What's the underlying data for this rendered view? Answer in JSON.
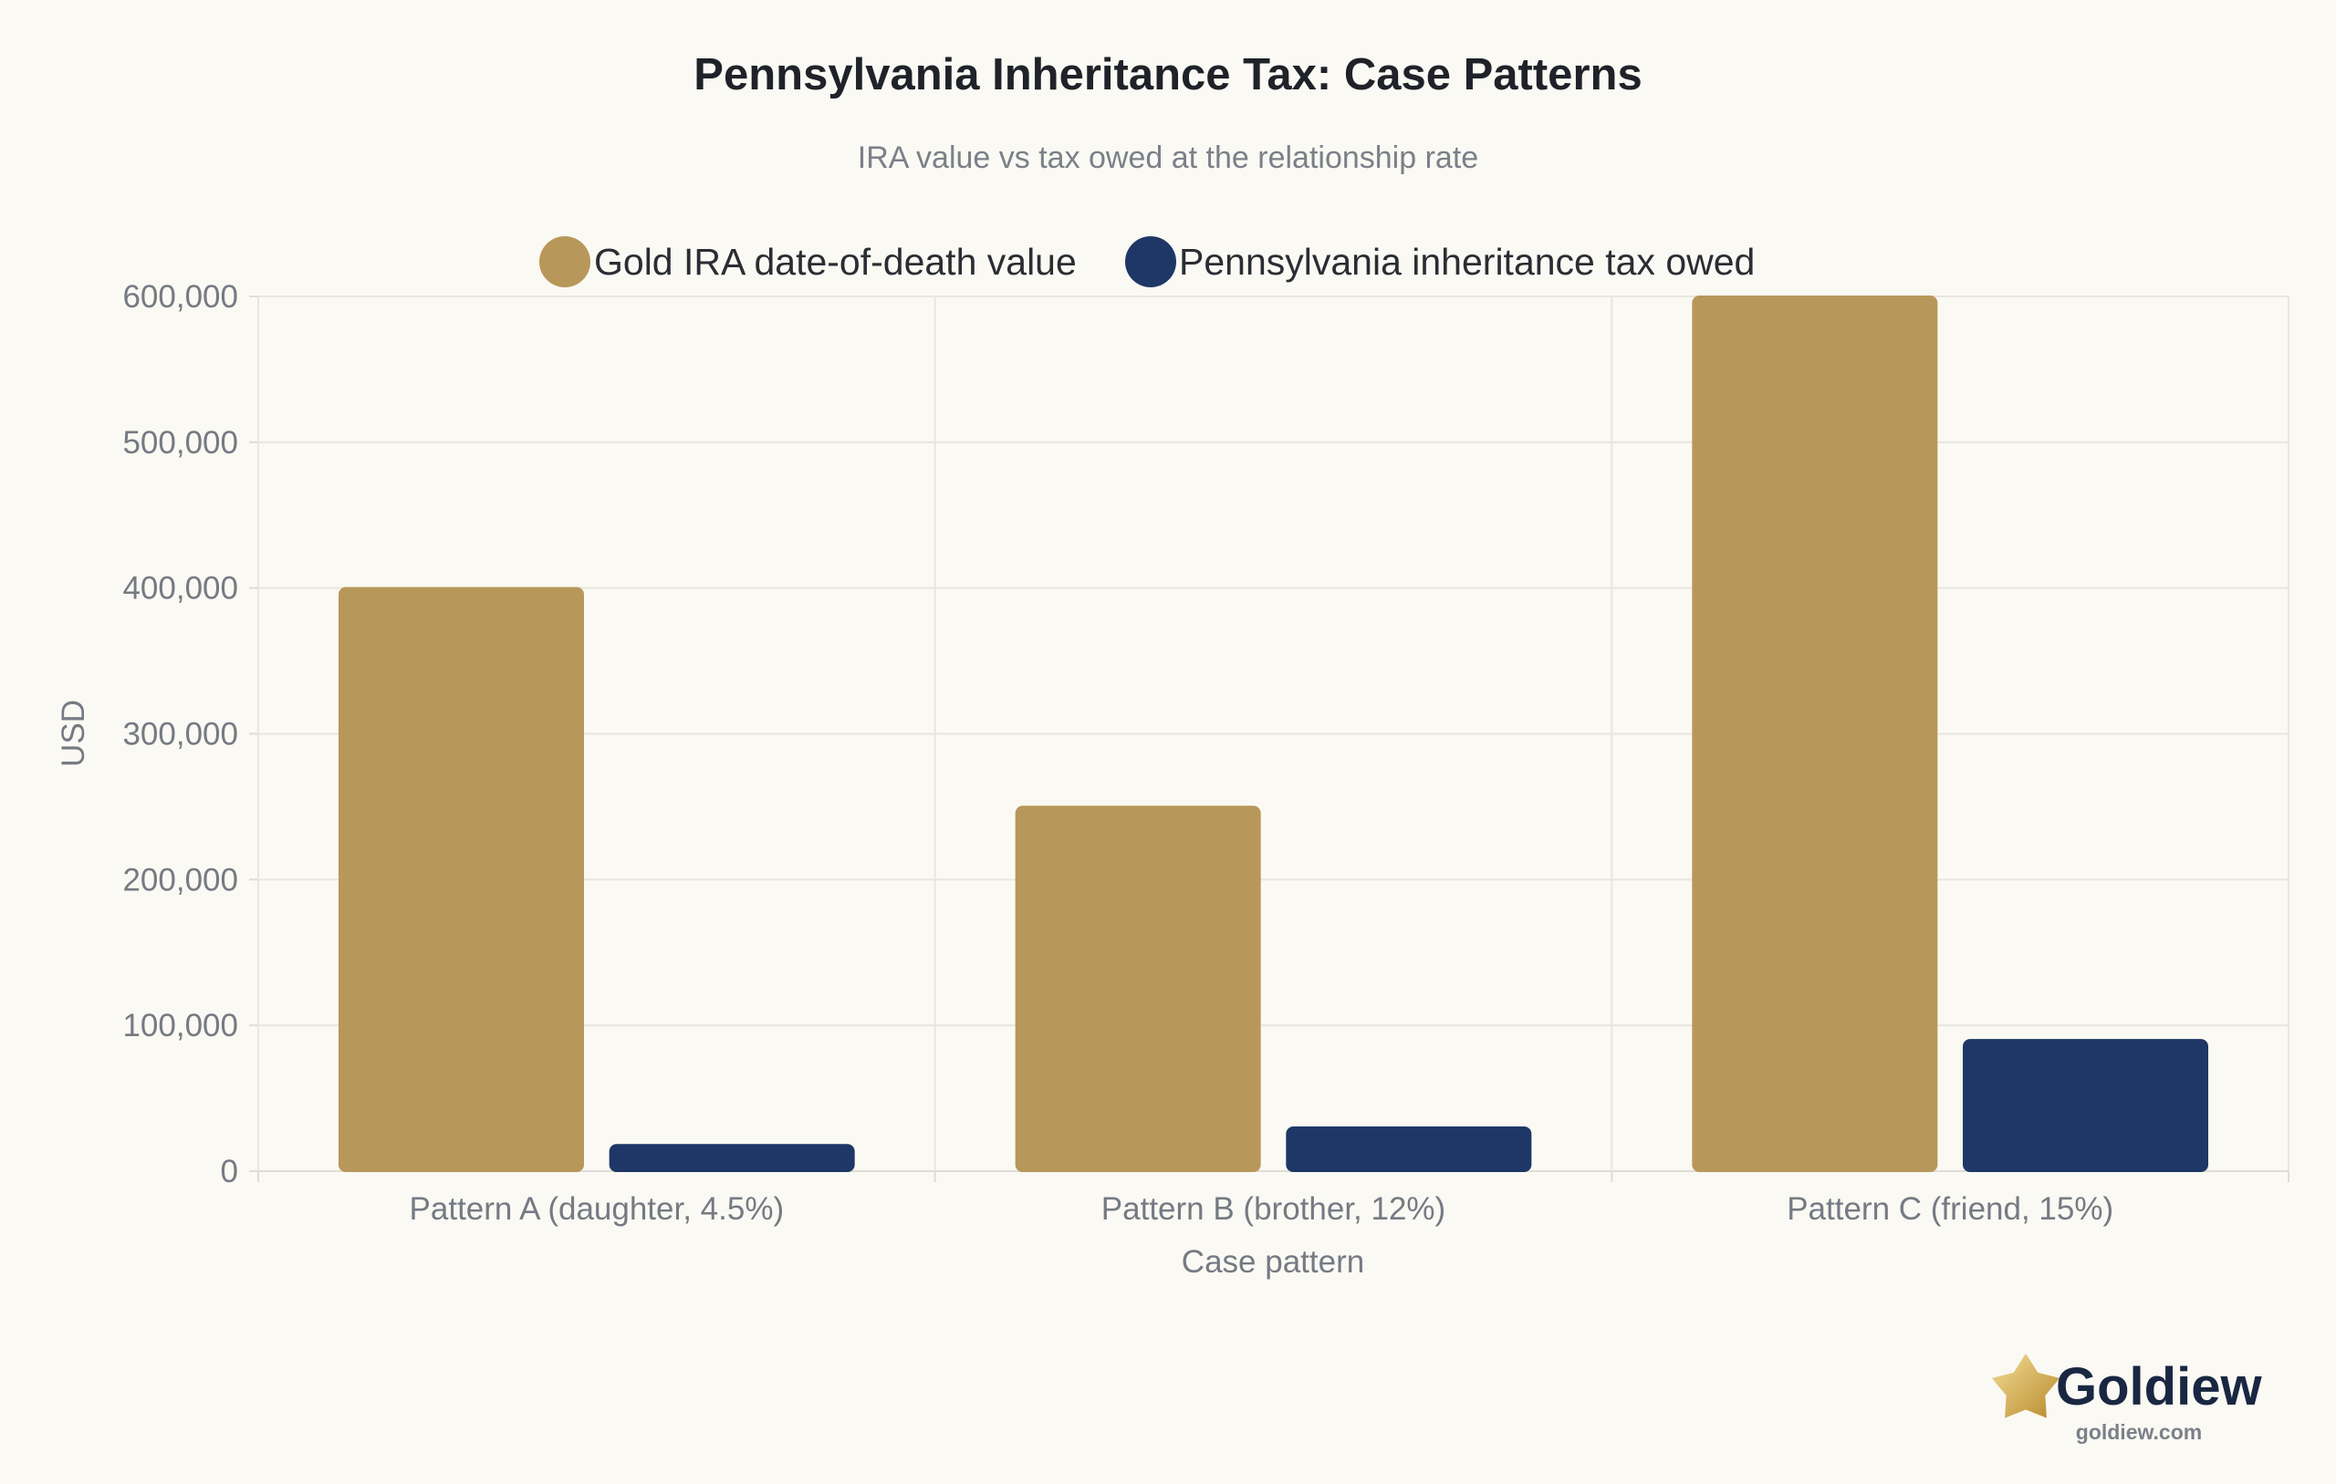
{
  "chart_data": {
    "type": "bar",
    "title": "Pennsylvania Inheritance Tax: Case Patterns",
    "subtitle": "IRA value vs tax owed at the relationship rate",
    "xlabel": "Case pattern",
    "ylabel": "USD",
    "categories": [
      "Pattern A (daughter, 4.5%)",
      "Pattern B (brother, 12%)",
      "Pattern C (friend, 15%)"
    ],
    "series": [
      {
        "name": "Gold IRA date-of-death value",
        "color": "#b8975a",
        "values": [
          400000,
          250000,
          600000
        ]
      },
      {
        "name": "Pennsylvania inheritance tax owed",
        "color": "#1e3766",
        "values": [
          18000,
          30000,
          90000
        ]
      }
    ],
    "ylim": [
      0,
      600000
    ],
    "yticks": [
      "0",
      "100,000",
      "200,000",
      "300,000",
      "400,000",
      "500,000",
      "600,000"
    ],
    "grid": true,
    "legend_position": "top"
  },
  "brand": {
    "name": "Goldiew",
    "url": "goldiew.com",
    "icon": "star-icon"
  }
}
